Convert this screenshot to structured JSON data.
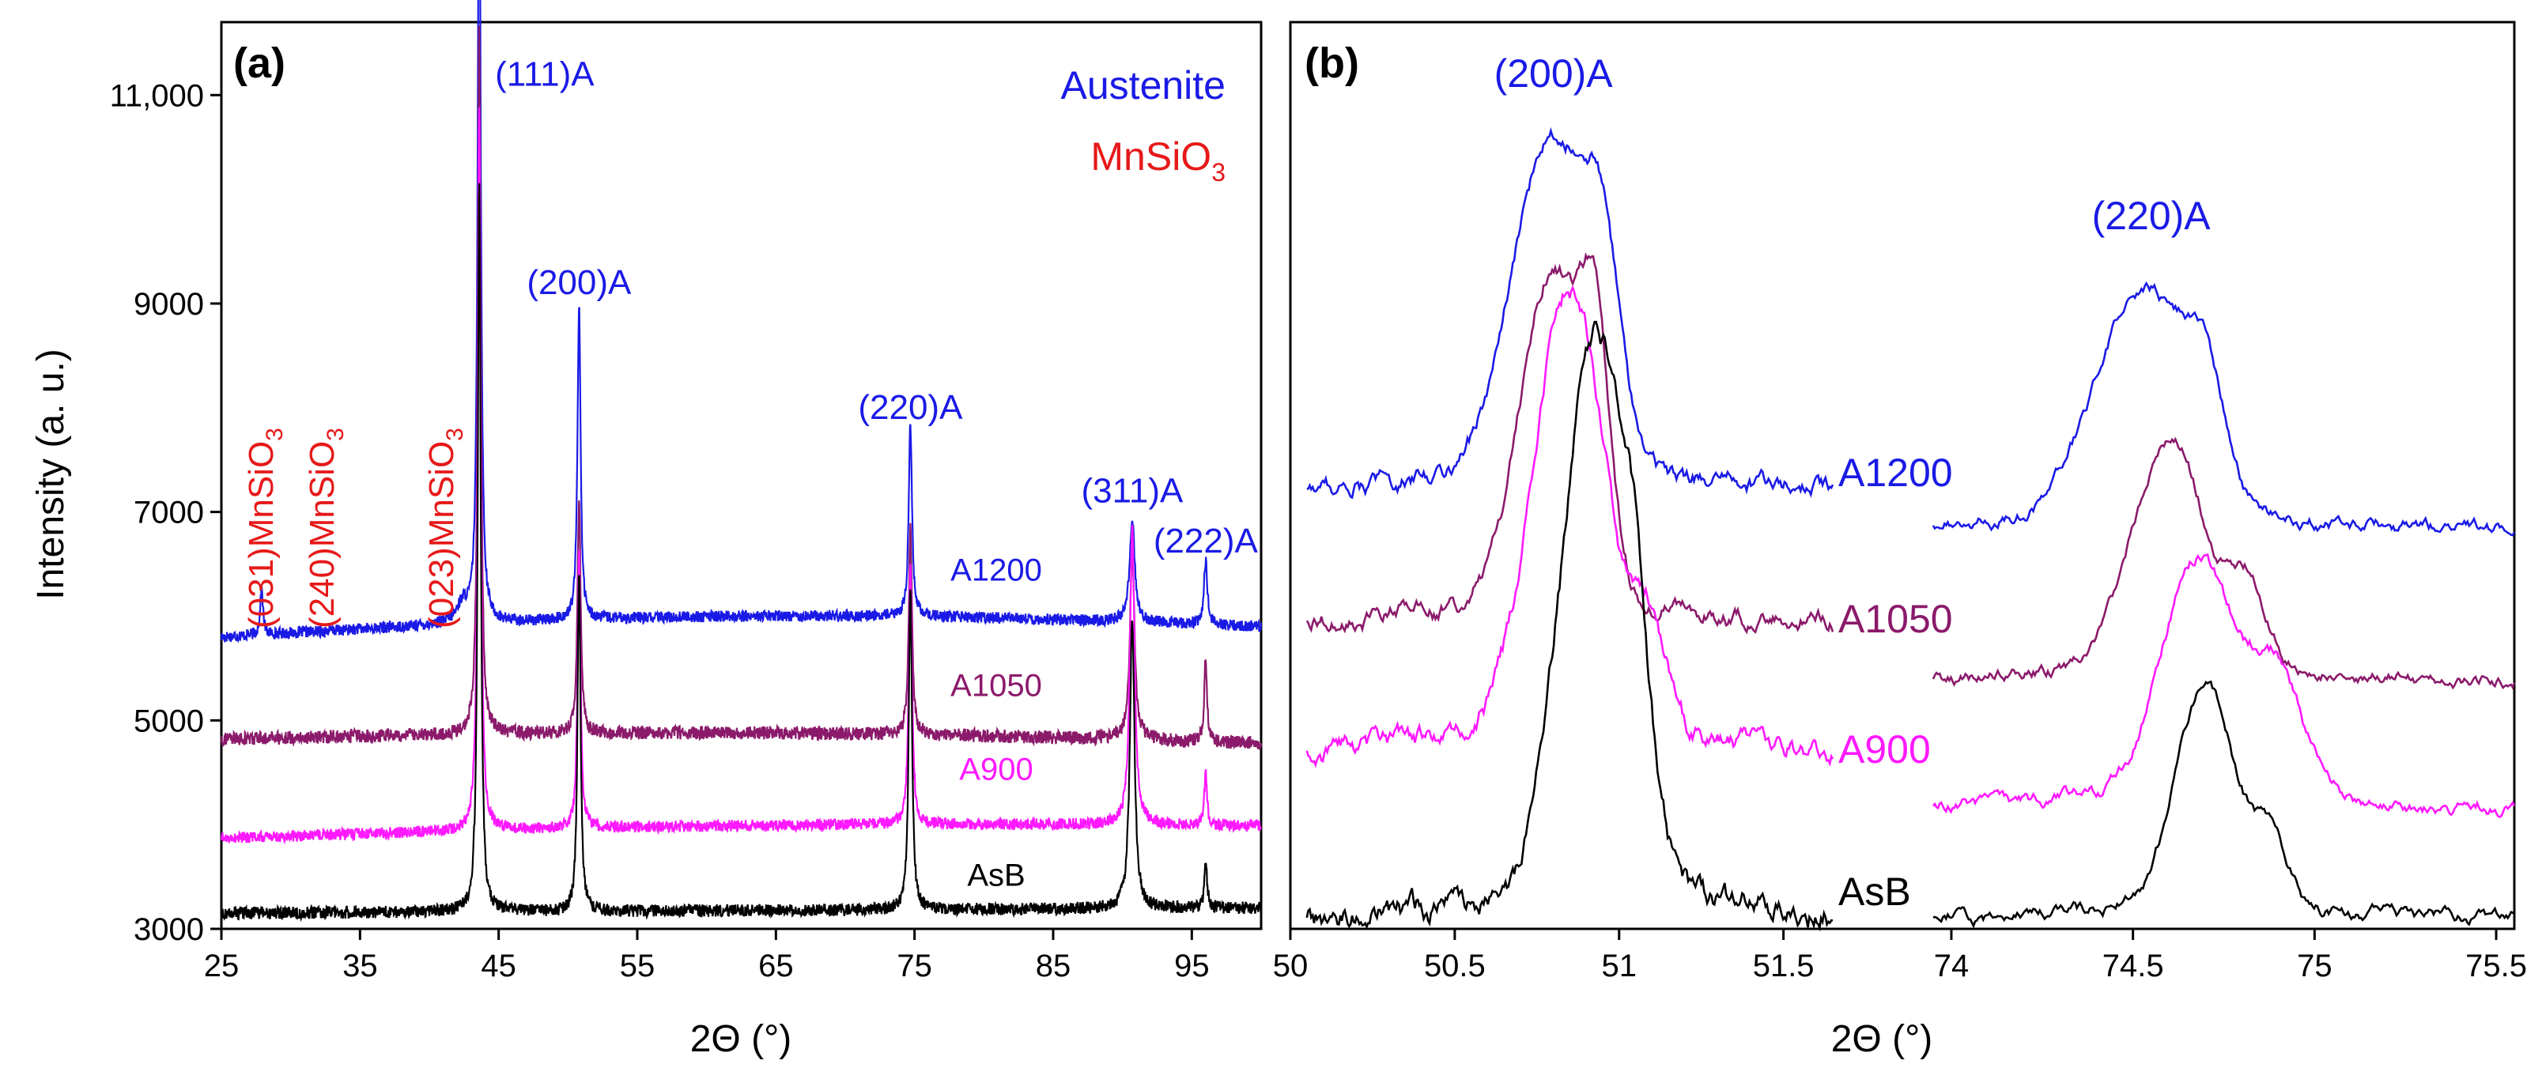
{
  "chart_data": [
    {
      "panel": "(a)",
      "type": "line",
      "xlabel": "2Θ (°)",
      "ylabel": "Intensity (a. u.)",
      "xlim": [
        25,
        100
      ],
      "ylim": [
        3000,
        11700
      ],
      "xticks": [
        25,
        35,
        45,
        55,
        65,
        75,
        85,
        95
      ],
      "yticks": [
        3000,
        5000,
        7000,
        9000,
        11000
      ],
      "ytick_labels": [
        "3000",
        "5000",
        "7000",
        "9000",
        "11,000"
      ],
      "legend": [
        {
          "text": "Austenite",
          "color": "#1a1ae6"
        },
        {
          "text": "MnSiO",
          "sub": "3",
          "color": "#e61919"
        }
      ],
      "peak_labels": [
        {
          "text": "(111)A",
          "x": 43.6,
          "y": 11000,
          "color": "#1a1ae6"
        },
        {
          "text": "(200)A",
          "x": 50.8,
          "y": 9000,
          "color": "#1a1ae6"
        },
        {
          "text": "(220)A",
          "x": 74.7,
          "y": 7800,
          "color": "#1a1ae6"
        },
        {
          "text": "(311)A",
          "x": 90.7,
          "y": 7000,
          "color": "#1a1ae6"
        },
        {
          "text": "(222)A",
          "x": 96.0,
          "y": 6520,
          "color": "#1a1ae6"
        }
      ],
      "vertical_labels": [
        {
          "text": "(031)MnSiO",
          "sub": "3",
          "x": 27.8,
          "color": "#e61919"
        },
        {
          "text": "(240)MnSiO",
          "sub": "3",
          "x": 32.2,
          "color": "#e61919"
        },
        {
          "text": "(023)MnSiO",
          "sub": "3",
          "x": 40.8,
          "color": "#e61919"
        }
      ],
      "series": [
        {
          "name": "A1200",
          "color": "#1a1ae6",
          "baseline": 5800,
          "baseline_end": 5900,
          "hump": 150,
          "noise": 55,
          "peaks": [
            [
              27.9,
              450,
              0.12
            ],
            [
              42.4,
              180,
              0.5
            ],
            [
              43.6,
              8000,
              0.13
            ],
            [
              50.8,
              3050,
              0.13
            ],
            [
              74.7,
              1850,
              0.14
            ],
            [
              90.7,
              1000,
              0.22
            ],
            [
              96.0,
              620,
              0.15
            ]
          ]
        },
        {
          "name": "A1050",
          "color": "#8b1a6b",
          "baseline": 4820,
          "baseline_end": 4780,
          "hump": 80,
          "noise": 65,
          "peaks": [
            [
              43.6,
              6800,
              0.13
            ],
            [
              50.8,
              2300,
              0.13
            ],
            [
              74.7,
              2000,
              0.14
            ],
            [
              90.7,
              1800,
              0.2
            ],
            [
              96.0,
              800,
              0.12
            ]
          ]
        },
        {
          "name": "A900",
          "color": "#ff19ff",
          "baseline": 3870,
          "baseline_end": 3990,
          "hump": 60,
          "noise": 55,
          "peaks": [
            [
              43.6,
              7000,
              0.13
            ],
            [
              50.8,
              2700,
              0.13
            ],
            [
              74.7,
              2550,
              0.14
            ],
            [
              90.7,
              2850,
              0.2
            ],
            [
              96.0,
              500,
              0.12
            ]
          ]
        },
        {
          "name": "AsB",
          "color": "#000000",
          "baseline": 3150,
          "baseline_end": 3200,
          "hump": 0,
          "noise": 60,
          "peaks": [
            [
              43.6,
              7000,
              0.13
            ],
            [
              50.8,
              3300,
              0.13
            ],
            [
              74.7,
              3100,
              0.14
            ],
            [
              90.7,
              2800,
              0.2
            ],
            [
              96.0,
              450,
              0.12
            ]
          ]
        }
      ]
    },
    {
      "panel": "(b)",
      "type": "line",
      "xlabel": "2Θ (°)",
      "segments": [
        {
          "xlim": [
            50,
            51.65
          ],
          "xticks": [
            50,
            50.5,
            51,
            51.5
          ],
          "xtick_labels": [
            "50",
            "50.5",
            "51",
            "51.5"
          ],
          "peak_label": {
            "text": "(200)A",
            "x": 50.8
          }
        },
        {
          "xlim": [
            73.95,
            75.55
          ],
          "xticks": [
            74,
            74.5,
            75,
            75.5
          ],
          "xtick_labels": [
            "74",
            "74.5",
            "75",
            "75.5"
          ],
          "peak_label": {
            "text": "(220)A",
            "x": 74.55
          }
        }
      ],
      "series": [
        {
          "name": "A1200",
          "color": "#1a1ae6",
          "peak200": {
            "center": 50.8,
            "height": 0.9,
            "width": 0.12,
            "shoulder": [
              50.95,
              0.35,
              0.05
            ]
          },
          "peak220": {
            "center": 74.53,
            "height": 0.83,
            "width": 0.13,
            "shoulder": [
              74.7,
              0.3,
              0.05
            ]
          },
          "offset200": 0.0,
          "offset220": 0.04
        },
        {
          "name": "A1050",
          "color": "#8b1a6b",
          "peak200": {
            "center": 50.8,
            "height": 0.9,
            "width": 0.1,
            "shoulder": [
              50.93,
              0.5,
              0.04
            ]
          },
          "peak220": {
            "center": 74.6,
            "height": 0.83,
            "width": 0.1,
            "shoulder": [
              74.82,
              0.3,
              0.05
            ]
          },
          "offset200": 0.0,
          "offset220": 0.05
        },
        {
          "name": "A900",
          "color": "#ff19ff",
          "peak200": {
            "center": 50.85,
            "height": 0.97,
            "width": 0.11,
            "shoulder": [
              51.1,
              0.2,
              0.05
            ]
          },
          "peak220": {
            "center": 74.68,
            "height": 0.83,
            "width": 0.1,
            "shoulder": [
              74.9,
              0.42,
              0.07
            ]
          },
          "offset200": 0.0,
          "offset220": 0.04
        },
        {
          "name": "AsB",
          "color": "#000000",
          "peak200": {
            "center": 50.93,
            "height": 1.0,
            "width": 0.1,
            "shoulder": [
              51.05,
              0.2,
              0.04
            ]
          },
          "peak220": {
            "center": 74.7,
            "height": 0.82,
            "width": 0.08,
            "shoulder": [
              74.88,
              0.25,
              0.05
            ]
          },
          "offset200": 0.0,
          "offset220": 0.05
        }
      ]
    }
  ]
}
